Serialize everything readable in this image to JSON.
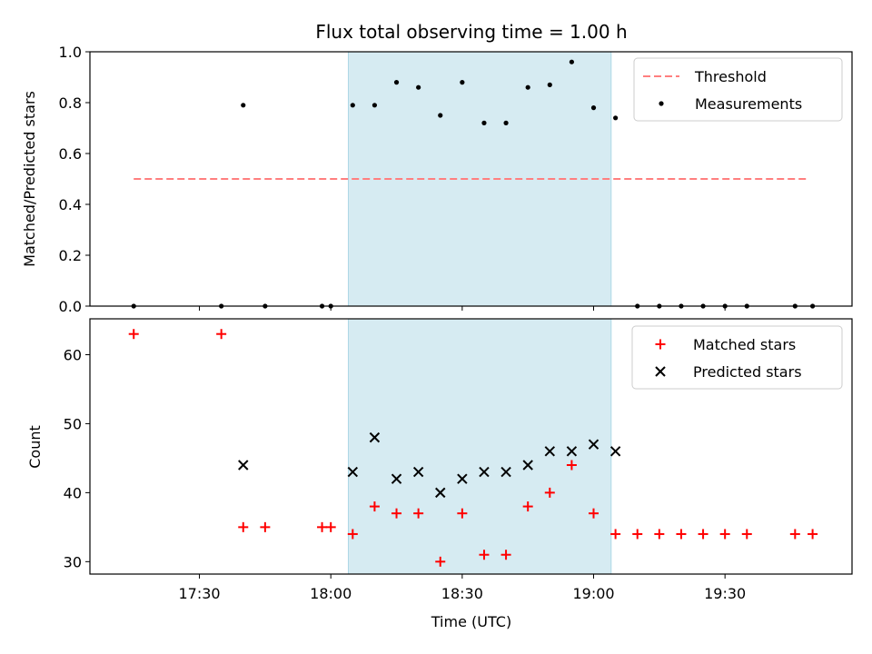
{
  "chart_data": [
    {
      "type": "scatter",
      "title": "Flux total observing time = 1.00 h",
      "xlabel": "",
      "ylabel": "Matched/Predicted stars",
      "ylim": [
        0,
        1.0
      ],
      "yticks": [
        "0.0",
        "0.2",
        "0.4",
        "0.6",
        "0.8",
        "1.0"
      ],
      "ytick_values": [
        0,
        0.2,
        0.4,
        0.6,
        0.8,
        1.0
      ],
      "shaded_region": {
        "start": 1084,
        "end": 1144
      },
      "threshold": {
        "name": "Threshold",
        "value": 0.5,
        "start": 1035,
        "end": 1189,
        "color": "#ff7f7f"
      },
      "legend": [
        "Threshold",
        "Measurements"
      ],
      "series": [
        {
          "name": "Measurements",
          "color": "#000000",
          "x": [
            1035,
            1055,
            1060,
            1065,
            1078,
            1080,
            1085,
            1090,
            1095,
            1100,
            1105,
            1110,
            1115,
            1120,
            1125,
            1130,
            1135,
            1140,
            1145,
            1150,
            1155,
            1160,
            1165,
            1170,
            1175,
            1186,
            1190
          ],
          "y": [
            0.0,
            0.0,
            0.79,
            0.0,
            0.0,
            0.0,
            0.79,
            0.79,
            0.88,
            0.86,
            0.75,
            0.88,
            0.72,
            0.72,
            0.86,
            0.87,
            0.96,
            0.78,
            0.74,
            0.0,
            0.0,
            0.0,
            0.0,
            0.0,
            0.0,
            0.0,
            0.0
          ]
        }
      ]
    },
    {
      "type": "scatter",
      "title": "",
      "xlabel": "Time (UTC)",
      "ylabel": "Count",
      "ylim": [
        28.2,
        65.2
      ],
      "yticks": [
        "30",
        "40",
        "50",
        "60"
      ],
      "ytick_values": [
        30,
        40,
        50,
        60
      ],
      "xticks": [
        "17:30",
        "18:00",
        "18:30",
        "19:00",
        "19:30"
      ],
      "xtick_values": [
        1050,
        1080,
        1110,
        1140,
        1170
      ],
      "xlim": [
        1025,
        1199
      ],
      "shaded_region": {
        "start": 1084,
        "end": 1144
      },
      "legend": [
        "Matched stars",
        "Predicted stars"
      ],
      "series": [
        {
          "name": "Matched stars",
          "marker": "plus",
          "color": "#ff0000",
          "x": [
            1035,
            1055,
            1060,
            1065,
            1078,
            1080,
            1085,
            1090,
            1095,
            1100,
            1105,
            1110,
            1115,
            1120,
            1125,
            1130,
            1135,
            1140,
            1145,
            1150,
            1155,
            1160,
            1165,
            1170,
            1175,
            1186,
            1190
          ],
          "y": [
            63,
            63,
            35,
            35,
            35,
            35,
            34,
            38,
            37,
            37,
            30,
            37,
            31,
            31,
            38,
            40,
            44,
            37,
            34,
            34,
            34,
            34,
            34,
            34,
            34,
            34,
            34
          ]
        },
        {
          "name": "Predicted stars",
          "marker": "x",
          "color": "#000000",
          "x": [
            1060,
            1085,
            1090,
            1095,
            1100,
            1105,
            1110,
            1115,
            1120,
            1125,
            1130,
            1135,
            1140,
            1145
          ],
          "y": [
            44,
            43,
            48,
            42,
            43,
            40,
            42,
            43,
            43,
            44,
            46,
            46,
            47,
            46
          ]
        }
      ]
    }
  ]
}
